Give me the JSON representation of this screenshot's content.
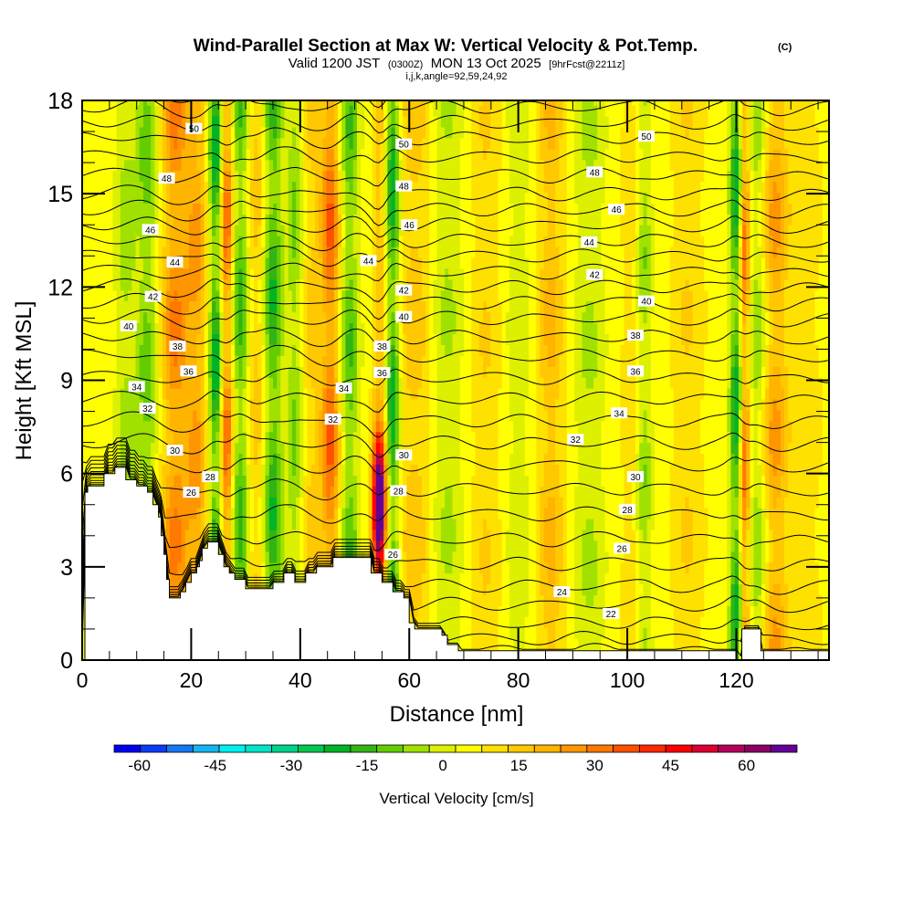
{
  "chart_data": {
    "type": "heatmap",
    "title": "Wind-Parallel Section at Max W: Vertical Velocity & Pot.Temp.",
    "title_suffix": "(C)",
    "subtitle_parts": [
      "Valid 1200 JST",
      "(0300Z)",
      "MON 13 Oct 2025",
      "[9hrFcst@2211z]"
    ],
    "subtitle2": "i,j,k,angle=92,59,24,92",
    "xlabel": "Distance [nm]",
    "ylabel": "Height [Kft MSL]",
    "xlim": [
      0,
      137
    ],
    "ylim": [
      0,
      18
    ],
    "xticks": [
      0,
      20,
      40,
      60,
      80,
      100,
      120
    ],
    "xtick_labels": [
      "0",
      "20",
      "40",
      "60",
      "80",
      "100",
      "120"
    ],
    "yticks": [
      0,
      3,
      6,
      9,
      12,
      15,
      18
    ],
    "ytick_labels": [
      "0",
      "3",
      "6",
      "9",
      "12",
      "15",
      "18"
    ],
    "colorbar": {
      "label": "Vertical Velocity [cm/s]",
      "levels": [
        -65,
        -60,
        -55,
        -50,
        -45,
        -40,
        -35,
        -30,
        -25,
        -20,
        -15,
        -10,
        -5,
        0,
        5,
        10,
        15,
        20,
        25,
        30,
        35,
        40,
        45,
        50,
        55,
        60,
        65,
        70
      ],
      "colors": [
        "#0000f0",
        "#0a3cf5",
        "#1478f0",
        "#14b4f0",
        "#00f0f0",
        "#00e6c8",
        "#00d28c",
        "#00c850",
        "#00b428",
        "#32b414",
        "#64cd00",
        "#a0e100",
        "#dcf000",
        "#ffff00",
        "#ffe100",
        "#ffc800",
        "#ffb400",
        "#ff9600",
        "#ff7800",
        "#ff5000",
        "#ff2800",
        "#ff0000",
        "#dc0032",
        "#b4005a",
        "#8c0064",
        "#640096"
      ],
      "tick_values": [
        -60,
        -45,
        -30,
        -15,
        0,
        15,
        30,
        45,
        60
      ],
      "tick_labels": [
        "-60",
        "-45",
        "-30",
        "-15",
        "0",
        "15",
        "30",
        "45",
        "60"
      ]
    },
    "w_features": [
      {
        "x": 8,
        "w": -12,
        "width": 2.0
      },
      {
        "x": 12,
        "w": -18,
        "width": 2.0
      },
      {
        "x": 17,
        "w": 25,
        "width": 2.5
      },
      {
        "x": 21,
        "w": 20,
        "width": 2.0
      },
      {
        "x": 24.5,
        "w": -30,
        "width": 1.3
      },
      {
        "x": 26.5,
        "w": 30,
        "width": 1.2
      },
      {
        "x": 29,
        "w": -22,
        "width": 1.6
      },
      {
        "x": 32,
        "w": 12,
        "width": 1.6
      },
      {
        "x": 35,
        "w": -25,
        "width": 1.8
      },
      {
        "x": 39,
        "w": -15,
        "width": 1.5
      },
      {
        "x": 42,
        "w": 10,
        "width": 1.5
      },
      {
        "x": 45.5,
        "w": 30,
        "width": 1.8
      },
      {
        "x": 49,
        "w": -20,
        "width": 1.8
      },
      {
        "x": 54.5,
        "w": 65,
        "width": 1.2
      },
      {
        "x": 57,
        "w": -28,
        "width": 1.3
      },
      {
        "x": 61,
        "w": 12,
        "width": 3.0
      },
      {
        "x": 67,
        "w": -10,
        "width": 3.0
      },
      {
        "x": 74,
        "w": 8,
        "width": 3.0
      },
      {
        "x": 80,
        "w": -8,
        "width": 2.5
      },
      {
        "x": 86,
        "w": 15,
        "width": 2.5
      },
      {
        "x": 93,
        "w": -10,
        "width": 3.0
      },
      {
        "x": 101,
        "w": 8,
        "width": 2.0
      },
      {
        "x": 103,
        "w": -15,
        "width": 1.5
      },
      {
        "x": 111,
        "w": 8,
        "width": 3.0
      },
      {
        "x": 120,
        "w": -30,
        "width": 1.2
      },
      {
        "x": 121.5,
        "w": 30,
        "width": 1.0
      },
      {
        "x": 124,
        "w": -15,
        "width": 1.8
      },
      {
        "x": 127,
        "w": 20,
        "width": 2.5
      },
      {
        "x": 133,
        "w": 5,
        "width": 3.0
      }
    ],
    "terrain": {
      "x": [
        0,
        0.5,
        1,
        4,
        6,
        7,
        8,
        9,
        10,
        11,
        12,
        13,
        14,
        14.5,
        15,
        15.5,
        16,
        17,
        18,
        19,
        20,
        21,
        21.5,
        22,
        23,
        24,
        25,
        26,
        27,
        28,
        29,
        30,
        32,
        33,
        35,
        37,
        38,
        39,
        40,
        41,
        42,
        43,
        44,
        45,
        46,
        48,
        50,
        51,
        52,
        53,
        54,
        55,
        56,
        57,
        58,
        59,
        60,
        61,
        63,
        65,
        66,
        67,
        69,
        70,
        71,
        72,
        74,
        77,
        80,
        100,
        118,
        120,
        120.5,
        121,
        122,
        124,
        124.5,
        125,
        137
      ],
      "h": [
        0,
        5.4,
        5.6,
        6.0,
        6.2,
        6.2,
        5.8,
        5.8,
        5.6,
        5.6,
        5.4,
        5.0,
        4.6,
        4.0,
        3.4,
        2.6,
        2.0,
        2.0,
        2.2,
        2.5,
        2.8,
        3.0,
        3.2,
        3.6,
        3.8,
        3.8,
        3.4,
        3.0,
        2.8,
        2.6,
        2.6,
        2.3,
        2.3,
        2.3,
        2.5,
        2.8,
        2.8,
        2.5,
        2.5,
        2.8,
        2.8,
        3.0,
        3.0,
        3.0,
        3.3,
        3.3,
        3.3,
        3.3,
        3.3,
        2.8,
        2.8,
        2.5,
        2.5,
        2.2,
        2.2,
        2.0,
        1.2,
        1.0,
        1.0,
        1.0,
        0.8,
        0.5,
        0.3,
        0.3,
        0.3,
        0.3,
        0.3,
        0.3,
        0.3,
        0.3,
        0.3,
        0.0,
        0,
        1.0,
        1.0,
        1.0,
        0.3,
        0.3,
        0.3
      ]
    },
    "theta_contours": {
      "units": "deg C potential temperature label",
      "levels": [
        21,
        22,
        23,
        24,
        25,
        26,
        27,
        28,
        29,
        30,
        31,
        32,
        33,
        34,
        35,
        36,
        37,
        38,
        39,
        40,
        41,
        42,
        43,
        44,
        45,
        46,
        47,
        48,
        49,
        50,
        51
      ],
      "base_heights": [
        0.3,
        0.7,
        1.2,
        1.8,
        2.4,
        3.1,
        3.9,
        4.7,
        5.5,
        6.3,
        7.0,
        7.7,
        8.4,
        9.1,
        9.8,
        10.4,
        11.0,
        11.5,
        12.0,
        12.5,
        13.0,
        13.5,
        14.0,
        14.5,
        15.0,
        15.6,
        16.2,
        16.8,
        17.3,
        17.8,
        18.3
      ]
    },
    "contour_labels": [
      {
        "text": "50",
        "x": 20.5,
        "y": 17.1
      },
      {
        "text": "48",
        "x": 15.5,
        "y": 15.5
      },
      {
        "text": "46",
        "x": 12.5,
        "y": 13.85
      },
      {
        "text": "44",
        "x": 17,
        "y": 12.8
      },
      {
        "text": "42",
        "x": 13,
        "y": 11.7
      },
      {
        "text": "40",
        "x": 8.5,
        "y": 10.75
      },
      {
        "text": "38",
        "x": 17.5,
        "y": 10.1
      },
      {
        "text": "36",
        "x": 19.5,
        "y": 9.3
      },
      {
        "text": "34",
        "x": 10,
        "y": 8.8
      },
      {
        "text": "32",
        "x": 12,
        "y": 8.1
      },
      {
        "text": "30",
        "x": 17,
        "y": 6.75
      },
      {
        "text": "28",
        "x": 23.5,
        "y": 5.9
      },
      {
        "text": "26",
        "x": 20,
        "y": 5.4
      },
      {
        "text": "50",
        "x": 59,
        "y": 16.6
      },
      {
        "text": "48",
        "x": 59,
        "y": 15.25
      },
      {
        "text": "46",
        "x": 60,
        "y": 14.0
      },
      {
        "text": "44",
        "x": 52.5,
        "y": 12.85
      },
      {
        "text": "42",
        "x": 59,
        "y": 11.9
      },
      {
        "text": "40",
        "x": 59,
        "y": 11.05
      },
      {
        "text": "38",
        "x": 55,
        "y": 10.1
      },
      {
        "text": "36",
        "x": 55,
        "y": 9.25
      },
      {
        "text": "34",
        "x": 48,
        "y": 8.75
      },
      {
        "text": "32",
        "x": 46,
        "y": 7.75
      },
      {
        "text": "30",
        "x": 59,
        "y": 6.6
      },
      {
        "text": "28",
        "x": 58,
        "y": 5.45
      },
      {
        "text": "26",
        "x": 57,
        "y": 3.4
      },
      {
        "text": "50",
        "x": 103.5,
        "y": 16.85
      },
      {
        "text": "48",
        "x": 94,
        "y": 15.7
      },
      {
        "text": "46",
        "x": 98,
        "y": 14.5
      },
      {
        "text": "44",
        "x": 93,
        "y": 13.45
      },
      {
        "text": "42",
        "x": 94,
        "y": 12.4
      },
      {
        "text": "40",
        "x": 103.5,
        "y": 11.55
      },
      {
        "text": "38",
        "x": 101.5,
        "y": 10.45
      },
      {
        "text": "36",
        "x": 101.5,
        "y": 9.3
      },
      {
        "text": "34",
        "x": 98.5,
        "y": 7.95
      },
      {
        "text": "32",
        "x": 90.5,
        "y": 7.1
      },
      {
        "text": "30",
        "x": 101.5,
        "y": 5.9
      },
      {
        "text": "28",
        "x": 100,
        "y": 4.85
      },
      {
        "text": "26",
        "x": 99,
        "y": 3.6
      },
      {
        "text": "24",
        "x": 88,
        "y": 2.2
      },
      {
        "text": "22",
        "x": 97,
        "y": 1.5
      }
    ]
  }
}
